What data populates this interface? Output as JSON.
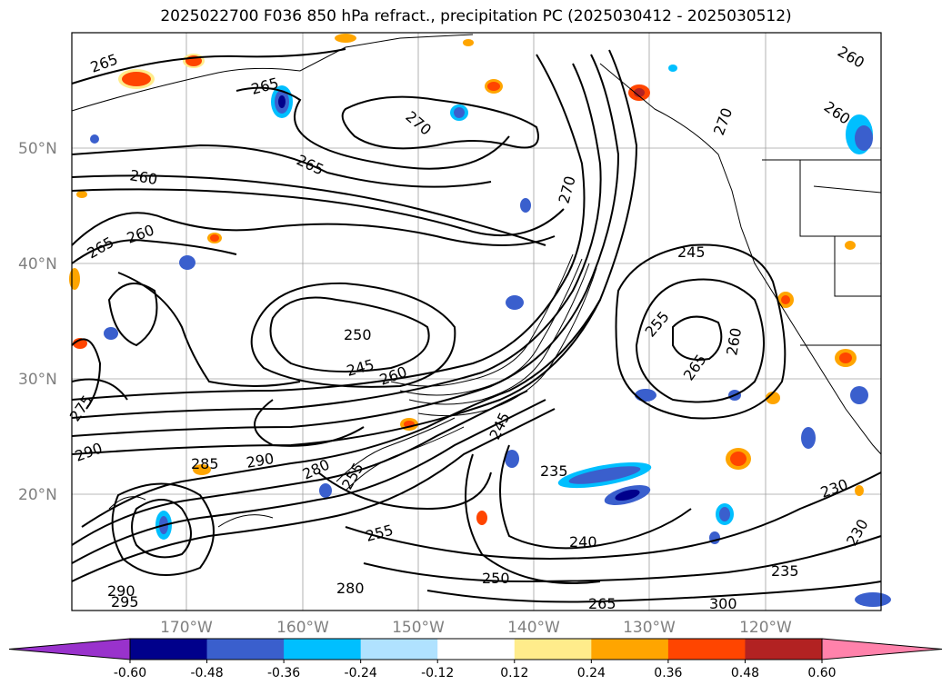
{
  "title": "2025022700 F036 850 hPa refract., precipitation PC (2025030412 - 2025030512)",
  "map": {
    "lat_labels": [
      "50°N",
      "40°N",
      "30°N",
      "20°N"
    ],
    "lon_labels": [
      "170°W",
      "160°W",
      "150°W",
      "140°W",
      "130°W",
      "120°W"
    ],
    "contour_labels": [
      {
        "text": "265"
      },
      {
        "text": "265"
      },
      {
        "text": "270"
      },
      {
        "text": "265"
      },
      {
        "text": "260"
      },
      {
        "text": "265"
      },
      {
        "text": "260"
      },
      {
        "text": "260"
      },
      {
        "text": "270"
      },
      {
        "text": "275"
      },
      {
        "text": "245"
      },
      {
        "text": "255"
      },
      {
        "text": "265"
      },
      {
        "text": "260"
      },
      {
        "text": "250"
      },
      {
        "text": "245"
      },
      {
        "text": "260"
      },
      {
        "text": "290"
      },
      {
        "text": "285"
      },
      {
        "text": "290"
      },
      {
        "text": "280"
      },
      {
        "text": "255"
      },
      {
        "text": "235"
      },
      {
        "text": "230"
      },
      {
        "text": "230"
      },
      {
        "text": "255"
      },
      {
        "text": "240"
      },
      {
        "text": "250"
      },
      {
        "text": "235"
      },
      {
        "text": "280"
      },
      {
        "text": "290"
      },
      {
        "text": "295"
      },
      {
        "text": "265"
      },
      {
        "text": "300"
      },
      {
        "text": "260"
      },
      {
        "text": "270"
      },
      {
        "text": "245"
      }
    ]
  },
  "colorbar": {
    "ticks": [
      "-0.60",
      "-0.48",
      "-0.36",
      "-0.24",
      "-0.12",
      "0.12",
      "0.24",
      "0.36",
      "0.48",
      "0.60"
    ],
    "colors": {
      "under": "#9932cc",
      "bins": [
        "#00008b",
        "#3a5fcd",
        "#00bfff",
        "#b0e2ff",
        "#ffffff",
        "#ffec8b",
        "#ffa500",
        "#ff4500",
        "#b22222"
      ],
      "over": "#ff82ab"
    }
  }
}
